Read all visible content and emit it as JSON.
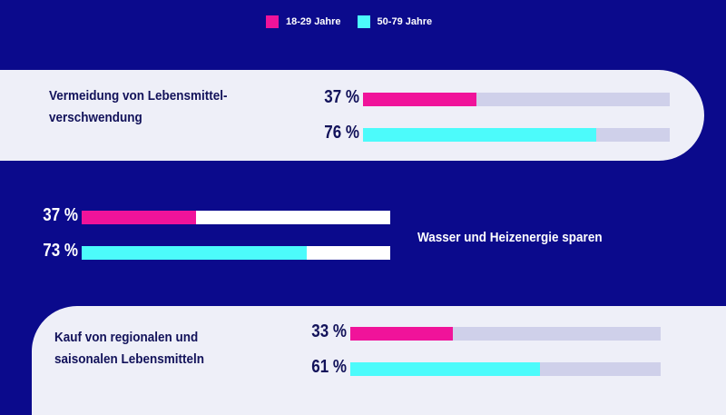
{
  "chart_data": {
    "type": "bar",
    "legend": [
      {
        "name": "18-29 Jahre",
        "color": "#f0139a"
      },
      {
        "name": "50-79 Jahre",
        "color": "#4cfbfb"
      }
    ],
    "legend_placement": "top",
    "xlim": [
      0,
      100
    ],
    "categories": [
      "Vermeidung von Lebensmittel-\nverschwendung",
      "Wasser und Heizenergie sparen",
      "Kauf von regionalen und saisonalen Lebensmitteln"
    ],
    "series": [
      {
        "name": "18-29 Jahre",
        "values": [
          37,
          37,
          33
        ],
        "labels": [
          "37 %",
          "37 %",
          "33 %"
        ]
      },
      {
        "name": "50-79 Jahre",
        "values": [
          76,
          73,
          61
        ],
        "labels": [
          "76 %",
          "73 %",
          "61 %"
        ]
      }
    ]
  },
  "colors": {
    "background": "#0b0a8c",
    "card": "#eeeff8",
    "track_light": "#cfd0ea",
    "track_white": "#ffffff",
    "text_dark": "#12125a"
  }
}
